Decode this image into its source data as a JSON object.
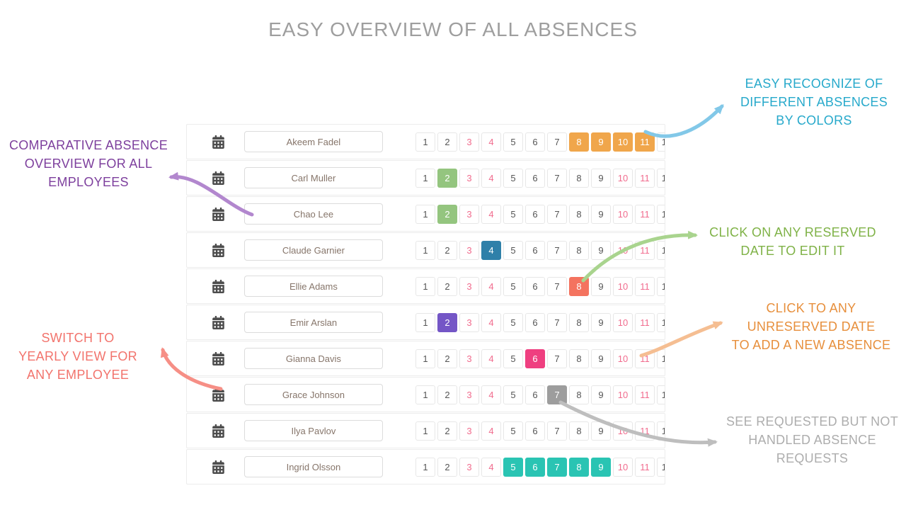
{
  "title": "EASY OVERVIEW OF ALL ABSENCES",
  "calendar": {
    "visible_days": 12,
    "weekend_days": [
      3,
      4,
      10,
      11
    ]
  },
  "employees": [
    {
      "name": "Akeem Fadel",
      "absence_color": "#F0A64B",
      "absence_days": [
        8,
        9,
        10,
        11
      ]
    },
    {
      "name": "Carl Muller",
      "absence_color": "#94C57F",
      "absence_days": [
        2
      ]
    },
    {
      "name": "Chao Lee",
      "absence_color": "#94C57F",
      "absence_days": [
        2
      ]
    },
    {
      "name": "Claude Garnier",
      "absence_color": "#2F80A9",
      "absence_days": [
        4
      ]
    },
    {
      "name": "Ellie Adams",
      "absence_color": "#F4735F",
      "absence_days": [
        8
      ]
    },
    {
      "name": "Emir Arslan",
      "absence_color": "#7456C6",
      "absence_days": [
        2
      ]
    },
    {
      "name": "Gianna Davis",
      "absence_color": "#EF3F80",
      "absence_days": [
        6
      ]
    },
    {
      "name": "Grace Johnson",
      "absence_color": "#9D9D9D",
      "absence_days": [
        7
      ]
    },
    {
      "name": "Ilya Pavlov",
      "absence_color": null,
      "absence_days": []
    },
    {
      "name": "Ingrid Olsson",
      "absence_color": "#2AC4B3",
      "absence_days": [
        5,
        6,
        7,
        8,
        9
      ]
    }
  ],
  "annotations": [
    {
      "id": "colors",
      "text": "EASY RECOGNIZE OF\nDIFFERENT ABSENCES\nBY COLORS",
      "color": "#27A9CB",
      "arrow": "#82C8E8"
    },
    {
      "id": "comparative",
      "text": "COMPARATIVE ABSENCE\nOVERVIEW FOR ALL\nEMPLOYEES",
      "color": "#7D3F9D",
      "arrow": "#B287CE"
    },
    {
      "id": "reserved",
      "text": "CLICK ON ANY RESERVED\nDATE TO EDIT IT",
      "color": "#7FB247",
      "arrow": "#A9D48E"
    },
    {
      "id": "unreserved",
      "text": "CLICK TO ANY\nUNRESERVED DATE\nTO ADD A NEW ABSENCE",
      "color": "#E78F3C",
      "arrow": "#F5BE92"
    },
    {
      "id": "yearly",
      "text": "SWITCH TO\nYEARLY VIEW FOR\nANY EMPLOYEE",
      "color": "#F2736C",
      "arrow": "#F68F86"
    },
    {
      "id": "requested",
      "text": "SEE REQUESTED BUT NOT\nHANDLED ABSENCE\nREQUESTS",
      "color": "#ADADAD",
      "arrow": "#BEBEBE"
    }
  ]
}
